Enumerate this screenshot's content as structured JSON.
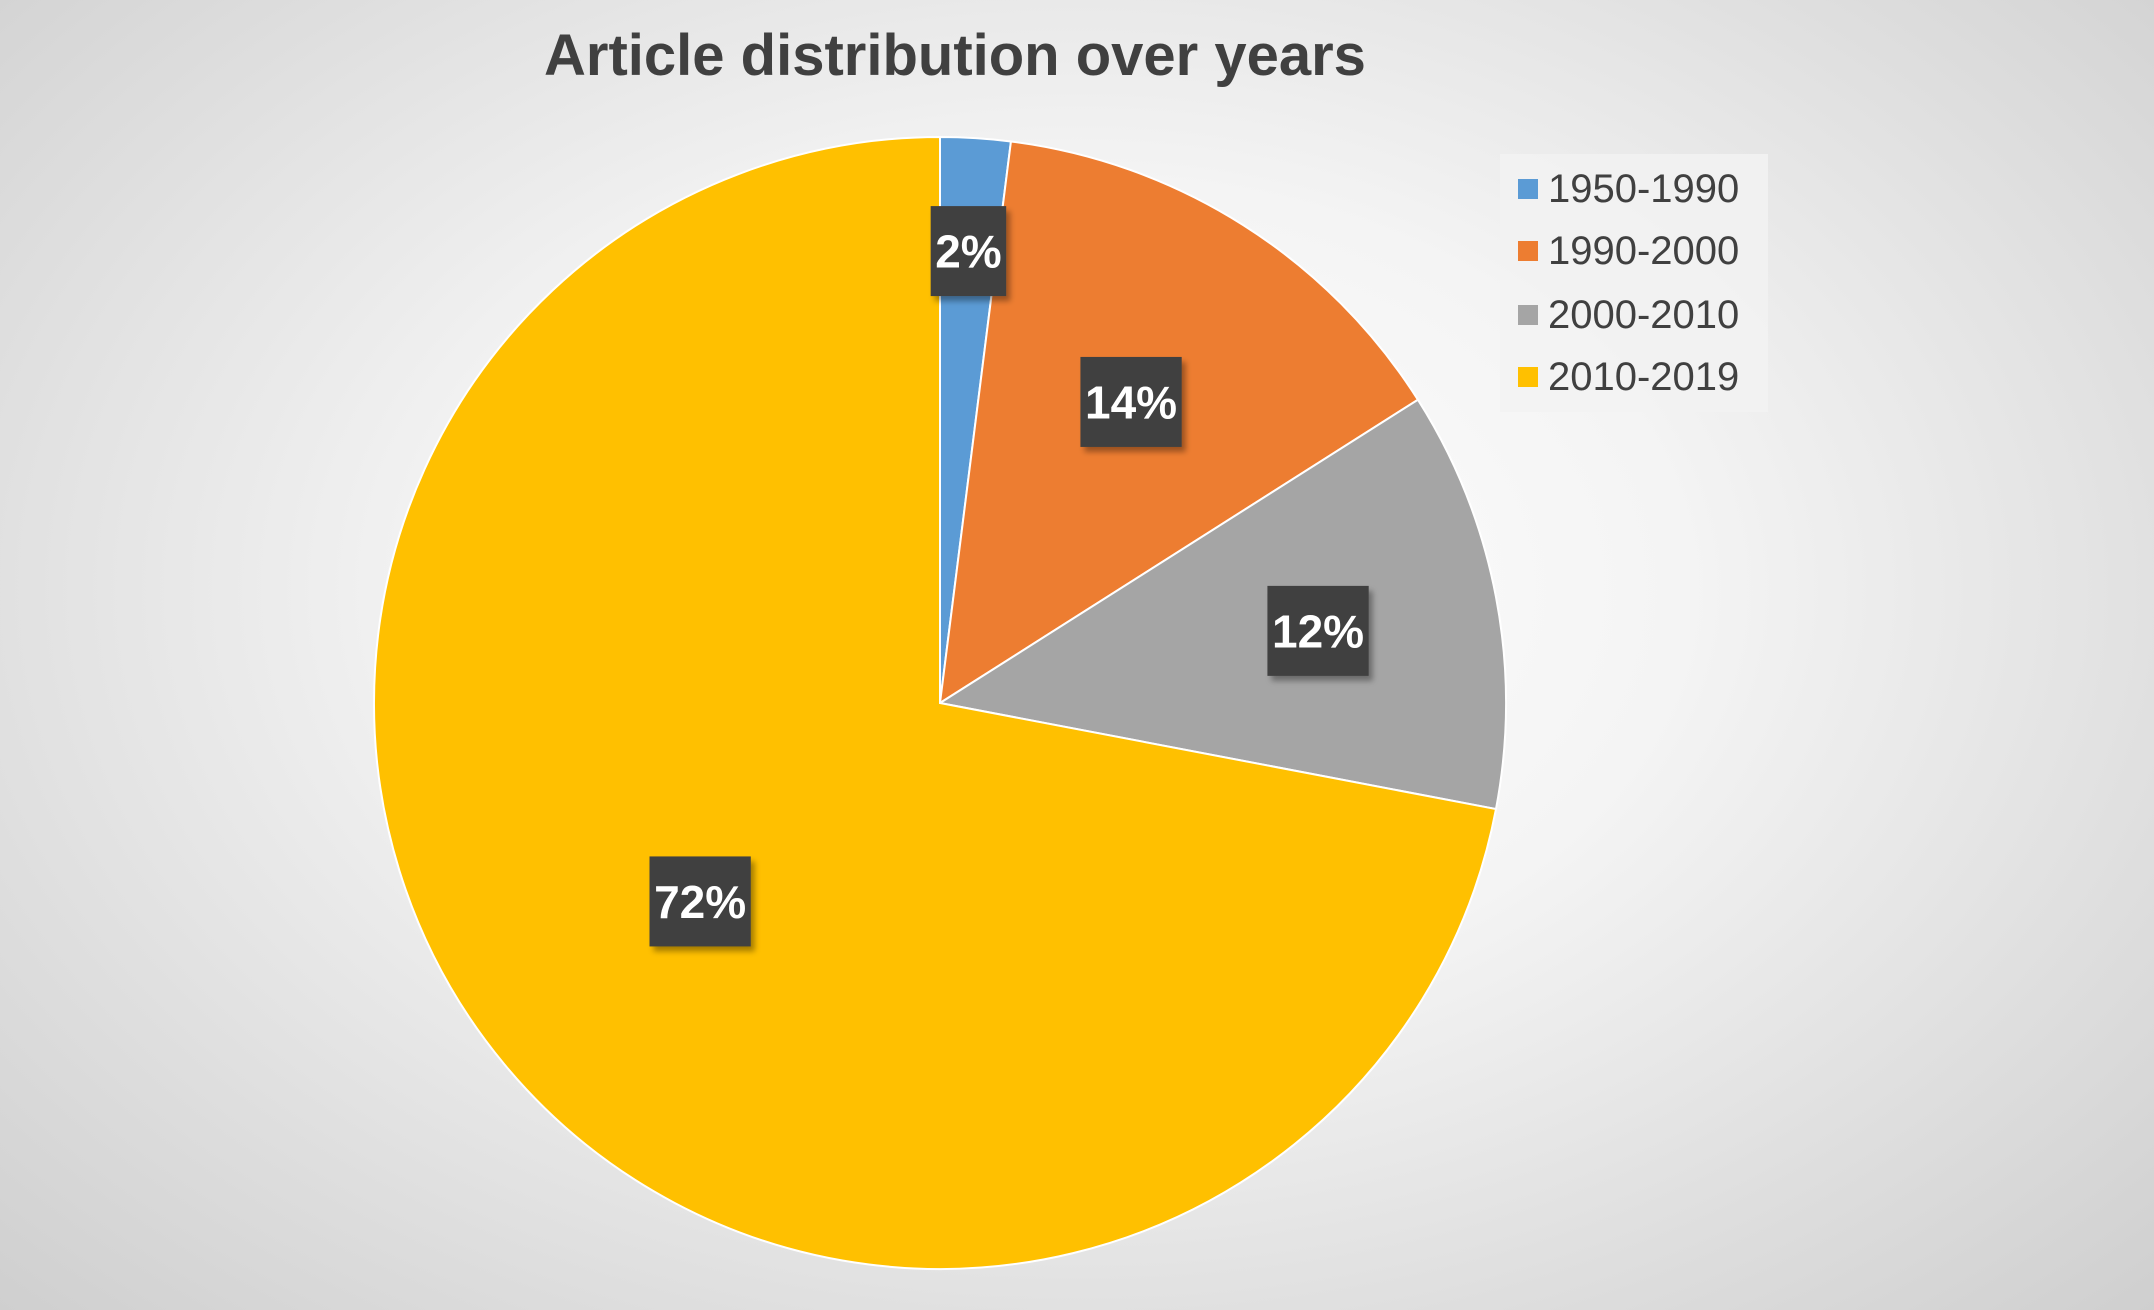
{
  "chart_data": {
    "type": "pie",
    "title": "Article distribution over years",
    "categories": [
      "1950-1990",
      "1990-2000",
      "2000-2010",
      "2010-2019"
    ],
    "values": [
      2,
      14,
      12,
      72
    ],
    "data_labels": [
      "2%",
      "14%",
      "12%",
      "72%"
    ],
    "colors": [
      "#5B9BD5",
      "#ED7D31",
      "#A5A5A5",
      "#FFC000"
    ],
    "label_box_color": "#404040",
    "legend_position": "top-right",
    "start_angle": "12 o'clock",
    "direction": "clockwise"
  }
}
